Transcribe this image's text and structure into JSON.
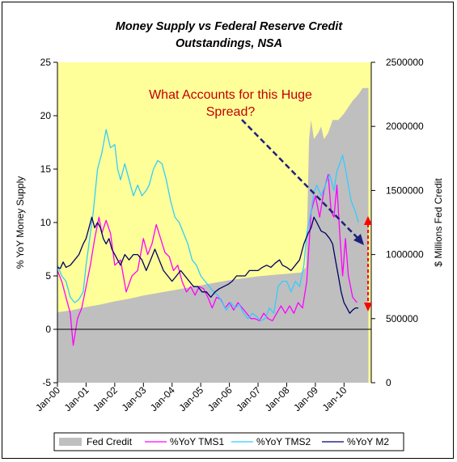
{
  "chart_data": {
    "type": "line",
    "title": "Money Supply vs Federal Reserve Credit",
    "subtitle": "Outstandings, NSA",
    "ylabel_left": "% YoY Money Supply",
    "ylabel_right": "$ Millions Fed Credit",
    "ylim_left": [
      -5,
      25
    ],
    "ylim_right": [
      0,
      2500000
    ],
    "yticks_left": [
      "-5",
      "0",
      "5",
      "10",
      "15",
      "20",
      "25"
    ],
    "yticks_right": [
      "0",
      "500000",
      "1000000",
      "1500000",
      "2000000",
      "2500000"
    ],
    "xticks": [
      "Jan-00",
      "Jan-01",
      "Jan-02",
      "Jan-03",
      "Jan-04",
      "Jan-05",
      "Jan-06",
      "Jan-07",
      "Jan-08",
      "Jan-09",
      "Jan-10"
    ],
    "annotation": [
      "What Accounts for this Huge",
      "Spread?"
    ],
    "legend_position": "bottom",
    "plot_background": "#ffff99",
    "series": [
      {
        "name": "Fed Credit",
        "kind": "area",
        "axis": "right",
        "color": "#bfbfbf",
        "points": [
          [
            2000.0,
            550000
          ],
          [
            2000.5,
            565000
          ],
          [
            2001.0,
            590000
          ],
          [
            2001.5,
            610000
          ],
          [
            2002.0,
            635000
          ],
          [
            2002.5,
            655000
          ],
          [
            2003.0,
            680000
          ],
          [
            2003.5,
            700000
          ],
          [
            2004.0,
            720000
          ],
          [
            2004.5,
            740000
          ],
          [
            2005.0,
            760000
          ],
          [
            2005.5,
            780000
          ],
          [
            2006.0,
            800000
          ],
          [
            2006.5,
            815000
          ],
          [
            2007.0,
            830000
          ],
          [
            2007.5,
            840000
          ],
          [
            2008.0,
            850000
          ],
          [
            2008.5,
            860000
          ],
          [
            2008.67,
            900000
          ],
          [
            2008.72,
            1300000
          ],
          [
            2008.78,
            1900000
          ],
          [
            2008.85,
            2050000
          ],
          [
            2008.95,
            1900000
          ],
          [
            2009.1,
            1950000
          ],
          [
            2009.2,
            2000000
          ],
          [
            2009.3,
            1900000
          ],
          [
            2009.45,
            1950000
          ],
          [
            2009.6,
            2050000
          ],
          [
            2009.8,
            2050000
          ],
          [
            2010.0,
            2100000
          ],
          [
            2010.3,
            2200000
          ],
          [
            2010.5,
            2250000
          ],
          [
            2010.65,
            2300000
          ],
          [
            2010.85,
            2300000
          ]
        ]
      },
      {
        "name": "%YoY TMS1",
        "kind": "line",
        "axis": "left",
        "color": "#ff00ff",
        "points": [
          [
            2000.0,
            5.5
          ],
          [
            2000.15,
            4.5
          ],
          [
            2000.3,
            3.0
          ],
          [
            2000.45,
            1.5
          ],
          [
            2000.55,
            -1.5
          ],
          [
            2000.7,
            1.0
          ],
          [
            2000.85,
            2.0
          ],
          [
            2001.0,
            4.0
          ],
          [
            2001.15,
            6.0
          ],
          [
            2001.3,
            8.5
          ],
          [
            2001.45,
            10.5
          ],
          [
            2001.55,
            9.0
          ],
          [
            2001.7,
            10.2
          ],
          [
            2001.85,
            9.0
          ],
          [
            2002.0,
            6.0
          ],
          [
            2002.2,
            6.5
          ],
          [
            2002.4,
            3.5
          ],
          [
            2002.6,
            5.0
          ],
          [
            2002.8,
            5.5
          ],
          [
            2003.0,
            8.5
          ],
          [
            2003.15,
            7.0
          ],
          [
            2003.3,
            8.0
          ],
          [
            2003.45,
            9.8
          ],
          [
            2003.6,
            8.5
          ],
          [
            2003.75,
            7.2
          ],
          [
            2003.9,
            6.8
          ],
          [
            2004.05,
            5.5
          ],
          [
            2004.2,
            6.0
          ],
          [
            2004.35,
            4.5
          ],
          [
            2004.5,
            3.5
          ],
          [
            2004.65,
            4.0
          ],
          [
            2004.8,
            3.2
          ],
          [
            2004.95,
            4.0
          ],
          [
            2005.1,
            3.8
          ],
          [
            2005.25,
            3.0
          ],
          [
            2005.4,
            2.0
          ],
          [
            2005.55,
            3.0
          ],
          [
            2005.7,
            2.8
          ],
          [
            2005.85,
            2.0
          ],
          [
            2006.0,
            2.5
          ],
          [
            2006.15,
            1.8
          ],
          [
            2006.3,
            2.5
          ],
          [
            2006.45,
            2.0
          ],
          [
            2006.6,
            1.5
          ],
          [
            2006.75,
            1.0
          ],
          [
            2006.9,
            1.0
          ],
          [
            2007.05,
            0.8
          ],
          [
            2007.2,
            1.5
          ],
          [
            2007.35,
            1.0
          ],
          [
            2007.5,
            0.8
          ],
          [
            2007.65,
            1.5
          ],
          [
            2007.8,
            2.2
          ],
          [
            2007.95,
            1.5
          ],
          [
            2008.1,
            2.2
          ],
          [
            2008.25,
            1.5
          ],
          [
            2008.4,
            2.5
          ],
          [
            2008.55,
            2.0
          ],
          [
            2008.7,
            4.5
          ],
          [
            2008.85,
            11.0
          ],
          [
            2009.0,
            12.5
          ],
          [
            2009.15,
            10.5
          ],
          [
            2009.3,
            13.0
          ],
          [
            2009.45,
            14.5
          ],
          [
            2009.55,
            11.0
          ],
          [
            2009.65,
            10.5
          ],
          [
            2009.75,
            13.5
          ],
          [
            2009.85,
            9.0
          ],
          [
            2009.95,
            5.0
          ],
          [
            2010.05,
            8.5
          ],
          [
            2010.15,
            5.0
          ],
          [
            2010.3,
            3.0
          ],
          [
            2010.45,
            2.5
          ]
        ]
      },
      {
        "name": "%YoY TMS2",
        "kind": "line",
        "axis": "left",
        "color": "#33ccff",
        "points": [
          [
            2000.0,
            6.0
          ],
          [
            2000.15,
            5.0
          ],
          [
            2000.3,
            4.5
          ],
          [
            2000.45,
            3.0
          ],
          [
            2000.6,
            2.5
          ],
          [
            2000.75,
            2.8
          ],
          [
            2000.9,
            3.5
          ],
          [
            2001.0,
            6.0
          ],
          [
            2001.1,
            8.0
          ],
          [
            2001.25,
            11.0
          ],
          [
            2001.4,
            15.0
          ],
          [
            2001.55,
            16.5
          ],
          [
            2001.7,
            18.7
          ],
          [
            2001.85,
            17.0
          ],
          [
            2002.0,
            17.3
          ],
          [
            2002.1,
            15.0
          ],
          [
            2002.2,
            14.0
          ],
          [
            2002.35,
            15.5
          ],
          [
            2002.5,
            14.0
          ],
          [
            2002.65,
            12.5
          ],
          [
            2002.8,
            13.5
          ],
          [
            2002.95,
            12.5
          ],
          [
            2003.1,
            13.0
          ],
          [
            2003.2,
            13.5
          ],
          [
            2003.35,
            15.0
          ],
          [
            2003.5,
            15.8
          ],
          [
            2003.65,
            15.5
          ],
          [
            2003.8,
            14.0
          ],
          [
            2003.95,
            12.0
          ],
          [
            2004.1,
            10.5
          ],
          [
            2004.25,
            10.0
          ],
          [
            2004.4,
            9.0
          ],
          [
            2004.55,
            8.0
          ],
          [
            2004.7,
            6.5
          ],
          [
            2004.85,
            6.0
          ],
          [
            2005.0,
            5.0
          ],
          [
            2005.15,
            4.5
          ],
          [
            2005.3,
            4.0
          ],
          [
            2005.45,
            3.5
          ],
          [
            2005.6,
            3.2
          ],
          [
            2005.75,
            2.5
          ],
          [
            2005.9,
            1.8
          ],
          [
            2006.05,
            2.5
          ],
          [
            2006.2,
            2.0
          ],
          [
            2006.35,
            2.3
          ],
          [
            2006.5,
            1.5
          ],
          [
            2006.65,
            1.0
          ],
          [
            2006.8,
            1.5
          ],
          [
            2006.95,
            1.2
          ],
          [
            2007.1,
            0.8
          ],
          [
            2007.25,
            1.0
          ],
          [
            2007.4,
            2.0
          ],
          [
            2007.55,
            1.5
          ],
          [
            2007.7,
            4.0
          ],
          [
            2007.85,
            4.5
          ],
          [
            2008.0,
            4.5
          ],
          [
            2008.15,
            3.5
          ],
          [
            2008.3,
            4.5
          ],
          [
            2008.45,
            4.0
          ],
          [
            2008.6,
            6.0
          ],
          [
            2008.7,
            9.0
          ],
          [
            2008.85,
            11.0
          ],
          [
            2008.95,
            12.8
          ],
          [
            2009.05,
            13.5
          ],
          [
            2009.2,
            12.5
          ],
          [
            2009.35,
            13.5
          ],
          [
            2009.5,
            14.5
          ],
          [
            2009.65,
            13.0
          ],
          [
            2009.75,
            14.8
          ],
          [
            2009.85,
            15.5
          ],
          [
            2009.95,
            16.3
          ],
          [
            2010.05,
            15.0
          ],
          [
            2010.15,
            13.5
          ],
          [
            2010.25,
            12.0
          ],
          [
            2010.4,
            11.0
          ],
          [
            2010.5,
            10.0
          ]
        ]
      },
      {
        "name": "%YoY M2",
        "kind": "line",
        "axis": "left",
        "color": "#000066",
        "points": [
          [
            2000.0,
            5.8
          ],
          [
            2000.1,
            5.7
          ],
          [
            2000.2,
            6.3
          ],
          [
            2000.3,
            5.8
          ],
          [
            2000.45,
            6.0
          ],
          [
            2000.6,
            6.5
          ],
          [
            2000.75,
            7.0
          ],
          [
            2000.9,
            8.0
          ],
          [
            2001.0,
            8.5
          ],
          [
            2001.1,
            9.5
          ],
          [
            2001.2,
            10.5
          ],
          [
            2001.3,
            9.5
          ],
          [
            2001.4,
            10.0
          ],
          [
            2001.5,
            9.5
          ],
          [
            2001.6,
            8.5
          ],
          [
            2001.7,
            8.0
          ],
          [
            2001.8,
            8.5
          ],
          [
            2001.9,
            7.5
          ],
          [
            2002.0,
            7.0
          ],
          [
            2002.1,
            6.5
          ],
          [
            2002.2,
            6.0
          ],
          [
            2002.35,
            7.0
          ],
          [
            2002.5,
            6.5
          ],
          [
            2002.65,
            7.0
          ],
          [
            2002.8,
            7.0
          ],
          [
            2002.95,
            6.5
          ],
          [
            2003.1,
            5.5
          ],
          [
            2003.25,
            6.5
          ],
          [
            2003.4,
            7.5
          ],
          [
            2003.55,
            6.5
          ],
          [
            2003.7,
            5.5
          ],
          [
            2003.85,
            5.0
          ],
          [
            2004.0,
            4.5
          ],
          [
            2004.15,
            5.0
          ],
          [
            2004.3,
            5.5
          ],
          [
            2004.45,
            5.0
          ],
          [
            2004.6,
            4.5
          ],
          [
            2004.75,
            4.0
          ],
          [
            2004.9,
            4.0
          ],
          [
            2005.05,
            3.5
          ],
          [
            2005.2,
            3.5
          ],
          [
            2005.35,
            3.0
          ],
          [
            2005.5,
            3.5
          ],
          [
            2005.65,
            3.8
          ],
          [
            2005.8,
            4.0
          ],
          [
            2005.95,
            4.2
          ],
          [
            2006.1,
            4.5
          ],
          [
            2006.25,
            5.0
          ],
          [
            2006.4,
            5.0
          ],
          [
            2006.55,
            5.0
          ],
          [
            2006.7,
            5.5
          ],
          [
            2006.85,
            5.5
          ],
          [
            2007.0,
            5.5
          ],
          [
            2007.15,
            5.8
          ],
          [
            2007.3,
            6.0
          ],
          [
            2007.45,
            5.8
          ],
          [
            2007.6,
            6.2
          ],
          [
            2007.75,
            6.5
          ],
          [
            2007.85,
            6.0
          ],
          [
            2008.0,
            5.8
          ],
          [
            2008.15,
            5.5
          ],
          [
            2008.3,
            6.0
          ],
          [
            2008.45,
            6.5
          ],
          [
            2008.6,
            8.0
          ],
          [
            2008.75,
            9.0
          ],
          [
            2008.85,
            9.5
          ],
          [
            2008.95,
            10.5
          ],
          [
            2009.05,
            10.0
          ],
          [
            2009.2,
            9.2
          ],
          [
            2009.35,
            9.0
          ],
          [
            2009.5,
            8.5
          ],
          [
            2009.6,
            8.0
          ],
          [
            2009.7,
            6.5
          ],
          [
            2009.8,
            5.0
          ],
          [
            2009.9,
            3.5
          ],
          [
            2010.0,
            2.5
          ],
          [
            2010.1,
            2.0
          ],
          [
            2010.2,
            1.5
          ],
          [
            2010.3,
            1.8
          ],
          [
            2010.4,
            2.0
          ],
          [
            2010.5,
            2.0
          ]
        ]
      }
    ]
  }
}
